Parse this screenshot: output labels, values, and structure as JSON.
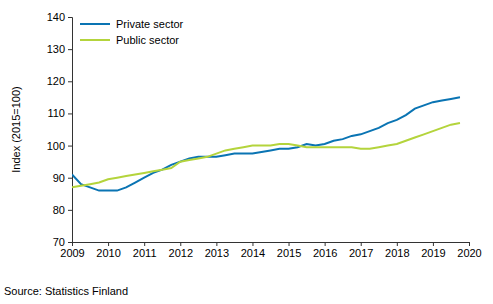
{
  "chart_data": {
    "type": "line",
    "y_label": "Index (2015=100)",
    "source": "Source: Statistics Finland",
    "x": [
      2009,
      2009.25,
      2009.5,
      2009.75,
      2010,
      2010.25,
      2010.5,
      2010.75,
      2011,
      2011.25,
      2011.5,
      2011.75,
      2012,
      2012.25,
      2012.5,
      2012.75,
      2013,
      2013.25,
      2013.5,
      2013.75,
      2014,
      2014.25,
      2014.5,
      2014.75,
      2015,
      2015.25,
      2015.5,
      2015.75,
      2016,
      2016.25,
      2016.5,
      2016.75,
      2017,
      2017.25,
      2017.5,
      2017.75,
      2018,
      2018.25,
      2018.5,
      2018.75,
      2019,
      2019.25,
      2019.5,
      2019.75
    ],
    "series": [
      {
        "name": "Private sector",
        "color": "#0a74b3",
        "values": [
          91,
          88,
          87,
          86,
          86,
          86,
          87,
          88.5,
          90,
          91.5,
          92.5,
          94,
          95,
          96,
          96.5,
          96.5,
          96.5,
          97,
          97.5,
          97.5,
          97.5,
          98,
          98.5,
          99,
          99,
          99.5,
          100.5,
          100,
          100.5,
          101.5,
          102,
          103,
          103.5,
          104.5,
          105.5,
          107,
          108,
          109.5,
          111.5,
          112.5,
          113.5,
          114,
          114.5,
          115
        ]
      },
      {
        "name": "Public sector",
        "color": "#b4d43c",
        "values": [
          87,
          87.5,
          88,
          88.5,
          89.5,
          90,
          90.5,
          91,
          91.5,
          92,
          92.5,
          93,
          95,
          95.5,
          96,
          96.5,
          97.5,
          98.5,
          99,
          99.5,
          100,
          100,
          100,
          100.5,
          100.5,
          100,
          99.5,
          99.5,
          99.5,
          99.5,
          99.5,
          99.5,
          99,
          99,
          99.5,
          100,
          100.5,
          101.5,
          102.5,
          103.5,
          104.5,
          105.5,
          106.5,
          107
        ]
      }
    ],
    "xlim": [
      2009,
      2020
    ],
    "xticks": [
      2009,
      2010,
      2011,
      2012,
      2013,
      2014,
      2015,
      2016,
      2017,
      2018,
      2019,
      2020
    ],
    "ylim": [
      70,
      140
    ],
    "yticks": [
      70,
      80,
      90,
      100,
      110,
      120,
      130,
      140
    ],
    "grid": false,
    "legend": "top-left"
  }
}
